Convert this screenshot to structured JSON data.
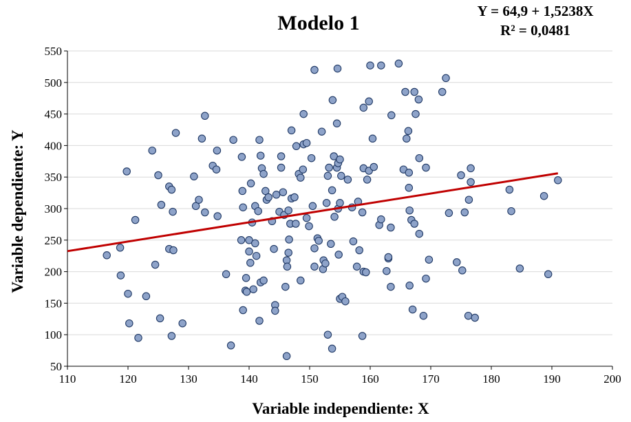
{
  "chart_data": {
    "type": "scatter",
    "title": "Modelo 1",
    "annotations": [
      "Y = 64,9 + 1,5238X",
      "R² = 0,0481"
    ],
    "xlabel": "Variable independiente: X",
    "ylabel": "Variable dependiente: Y",
    "xlim": [
      110,
      200
    ],
    "ylim": [
      50,
      550
    ],
    "xticks": [
      110,
      120,
      130,
      140,
      150,
      160,
      170,
      180,
      190,
      200
    ],
    "yticks": [
      50,
      100,
      150,
      200,
      250,
      300,
      350,
      400,
      450,
      500,
      550
    ],
    "grid": "horizontal",
    "trendline": {
      "intercept": 64.9,
      "slope": 1.5238,
      "x_range": [
        110,
        191
      ],
      "color": "#c00000"
    },
    "marker": {
      "fill": "#8ea3c9",
      "stroke": "#1f3864"
    },
    "points": [
      [
        116.5,
        226
      ],
      [
        118.7,
        238
      ],
      [
        118.8,
        194
      ],
      [
        119.8,
        359
      ],
      [
        120.0,
        165
      ],
      [
        120.2,
        118
      ],
      [
        121.2,
        282
      ],
      [
        121.7,
        95
      ],
      [
        123.0,
        161
      ],
      [
        124.0,
        392
      ],
      [
        124.5,
        211
      ],
      [
        125.0,
        353
      ],
      [
        125.3,
        126
      ],
      [
        125.5,
        306
      ],
      [
        126.8,
        335
      ],
      [
        126.8,
        236
      ],
      [
        127.2,
        330
      ],
      [
        127.5,
        234
      ],
      [
        127.4,
        295
      ],
      [
        127.2,
        98
      ],
      [
        127.9,
        420
      ],
      [
        129.0,
        118
      ],
      [
        130.9,
        351
      ],
      [
        131.2,
        304
      ],
      [
        131.7,
        314
      ],
      [
        132.2,
        411
      ],
      [
        132.7,
        447
      ],
      [
        132.7,
        294
      ],
      [
        134.0,
        368
      ],
      [
        134.6,
        362
      ],
      [
        134.7,
        392
      ],
      [
        134.8,
        288
      ],
      [
        136.2,
        196
      ],
      [
        137.0,
        83
      ],
      [
        137.4,
        409
      ],
      [
        138.7,
        250
      ],
      [
        138.8,
        382
      ],
      [
        138.9,
        328
      ],
      [
        139.0,
        139
      ],
      [
        139.0,
        302
      ],
      [
        139.4,
        170
      ],
      [
        139.5,
        190
      ],
      [
        139.6,
        168
      ],
      [
        140.0,
        250
      ],
      [
        140.0,
        232
      ],
      [
        140.2,
        214
      ],
      [
        140.3,
        340
      ],
      [
        140.5,
        278
      ],
      [
        140.7,
        172
      ],
      [
        141.0,
        304
      ],
      [
        141.0,
        245
      ],
      [
        141.2,
        225
      ],
      [
        141.5,
        296
      ],
      [
        141.7,
        409
      ],
      [
        141.7,
        122
      ],
      [
        141.9,
        183
      ],
      [
        141.9,
        384
      ],
      [
        142.1,
        364
      ],
      [
        142.4,
        186
      ],
      [
        142.4,
        355
      ],
      [
        142.7,
        328
      ],
      [
        142.9,
        314
      ],
      [
        143.2,
        318
      ],
      [
        143.8,
        280
      ],
      [
        144.1,
        236
      ],
      [
        144.3,
        147
      ],
      [
        144.3,
        138
      ],
      [
        144.5,
        322
      ],
      [
        145.0,
        295
      ],
      [
        145.3,
        383
      ],
      [
        145.3,
        365
      ],
      [
        145.6,
        326
      ],
      [
        145.8,
        290
      ],
      [
        146.0,
        176
      ],
      [
        146.2,
        218
      ],
      [
        146.2,
        66
      ],
      [
        146.3,
        208
      ],
      [
        146.5,
        230
      ],
      [
        146.5,
        297
      ],
      [
        146.6,
        251
      ],
      [
        146.8,
        276
      ],
      [
        147.0,
        424
      ],
      [
        147.0,
        316
      ],
      [
        147.5,
        318
      ],
      [
        147.7,
        276
      ],
      [
        147.8,
        399
      ],
      [
        148.2,
        355
      ],
      [
        148.5,
        349
      ],
      [
        148.5,
        186
      ],
      [
        148.9,
        362
      ],
      [
        149.0,
        402
      ],
      [
        149.0,
        450
      ],
      [
        149.5,
        404
      ],
      [
        149.5,
        285
      ],
      [
        149.9,
        272
      ],
      [
        150.3,
        380
      ],
      [
        150.5,
        304
      ],
      [
        150.8,
        237
      ],
      [
        150.8,
        520
      ],
      [
        150.8,
        208
      ],
      [
        151.3,
        253
      ],
      [
        151.5,
        249
      ],
      [
        152.0,
        422
      ],
      [
        152.2,
        204
      ],
      [
        152.3,
        218
      ],
      [
        152.6,
        213
      ],
      [
        152.8,
        309
      ],
      [
        153.0,
        100
      ],
      [
        153.0,
        352
      ],
      [
        153.2,
        365
      ],
      [
        153.5,
        244
      ],
      [
        153.7,
        329
      ],
      [
        153.7,
        78
      ],
      [
        153.8,
        472
      ],
      [
        154.0,
        383
      ],
      [
        154.1,
        287
      ],
      [
        154.5,
        435
      ],
      [
        154.5,
        365
      ],
      [
        154.7,
        372
      ],
      [
        154.6,
        522
      ],
      [
        154.7,
        300
      ],
      [
        154.8,
        227
      ],
      [
        155.0,
        157
      ],
      [
        155.0,
        378
      ],
      [
        155.0,
        309
      ],
      [
        155.2,
        352
      ],
      [
        155.4,
        160
      ],
      [
        155.9,
        153
      ],
      [
        156.3,
        346
      ],
      [
        157.0,
        302
      ],
      [
        157.2,
        248
      ],
      [
        157.8,
        208
      ],
      [
        158.0,
        311
      ],
      [
        158.2,
        234
      ],
      [
        158.7,
        294
      ],
      [
        158.7,
        98
      ],
      [
        158.9,
        364
      ],
      [
        158.9,
        200
      ],
      [
        158.9,
        460
      ],
      [
        159.3,
        199
      ],
      [
        159.5,
        346
      ],
      [
        159.8,
        360
      ],
      [
        159.8,
        470
      ],
      [
        160.0,
        527
      ],
      [
        160.4,
        411
      ],
      [
        160.6,
        366
      ],
      [
        161.5,
        274
      ],
      [
        161.8,
        527
      ],
      [
        161.8,
        283
      ],
      [
        162.7,
        201
      ],
      [
        163.0,
        221
      ],
      [
        163.0,
        223
      ],
      [
        163.4,
        176
      ],
      [
        163.4,
        270
      ],
      [
        163.5,
        448
      ],
      [
        164.7,
        530
      ],
      [
        165.5,
        362
      ],
      [
        165.8,
        485
      ],
      [
        166.0,
        411
      ],
      [
        166.3,
        423
      ],
      [
        166.4,
        357
      ],
      [
        166.4,
        333
      ],
      [
        166.5,
        178
      ],
      [
        166.5,
        297
      ],
      [
        166.8,
        282
      ],
      [
        167.0,
        140
      ],
      [
        167.3,
        276
      ],
      [
        167.3,
        485
      ],
      [
        167.5,
        450
      ],
      [
        168.0,
        473
      ],
      [
        168.1,
        380
      ],
      [
        168.1,
        260
      ],
      [
        168.8,
        130
      ],
      [
        169.2,
        365
      ],
      [
        169.2,
        189
      ],
      [
        169.7,
        219
      ],
      [
        171.9,
        485
      ],
      [
        172.5,
        507
      ],
      [
        173.0,
        293
      ],
      [
        174.3,
        215
      ],
      [
        175.0,
        353
      ],
      [
        175.2,
        202
      ],
      [
        175.6,
        294
      ],
      [
        176.2,
        130
      ],
      [
        176.3,
        314
      ],
      [
        176.6,
        342
      ],
      [
        176.6,
        364
      ],
      [
        177.3,
        127
      ],
      [
        183.0,
        330
      ],
      [
        183.3,
        296
      ],
      [
        184.7,
        205
      ],
      [
        188.7,
        320
      ],
      [
        189.4,
        196
      ],
      [
        191.0,
        345
      ]
    ]
  }
}
